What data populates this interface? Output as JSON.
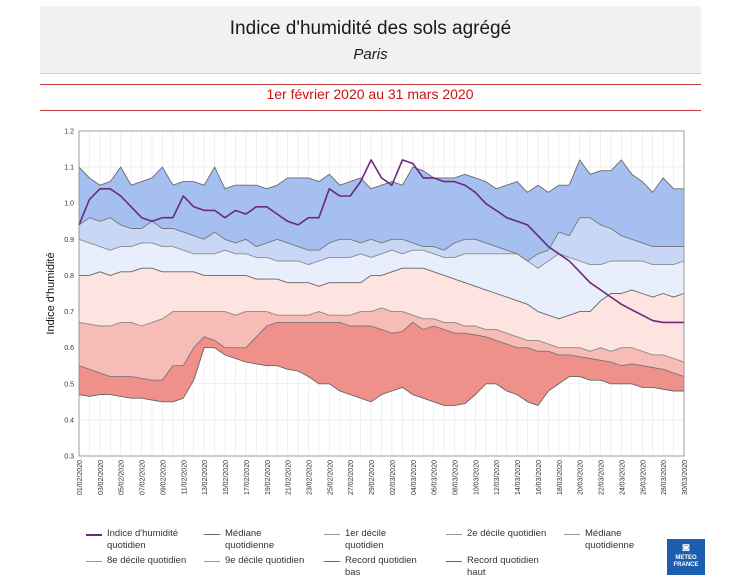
{
  "header": {
    "title": "Indice d'humidité des sols agrégé",
    "subtitle": "Paris"
  },
  "period": "1er février 2020 au 31 mars 2020",
  "logo": {
    "line1": "METEO",
    "line2": "FRANCE",
    "icon": "meteo-france-logo"
  },
  "chart_data": {
    "type": "area",
    "title": "Indice d'humidité des sols agrégé",
    "subtitle": "Paris",
    "ylabel": "Indice d'humidité",
    "xlabel": "",
    "ylim": [
      0.3,
      1.2
    ],
    "yticks": [
      "0.3",
      "0.4",
      "0.5",
      "0.6",
      "0.7",
      "0.8",
      "0.9",
      "1.0",
      "1.1",
      "1.2"
    ],
    "xticks": [
      "01/02/2020",
      "03/02/2020",
      "05/02/2020",
      "07/02/2020",
      "09/02/2020",
      "11/02/2020",
      "13/02/2020",
      "15/02/2020",
      "17/02/2020",
      "19/02/2020",
      "21/02/2020",
      "23/02/2020",
      "25/02/2020",
      "27/02/2020",
      "29/02/2020",
      "02/03/2020",
      "04/03/2020",
      "06/03/2020",
      "08/03/2020",
      "10/03/2020",
      "12/03/2020",
      "14/03/2020",
      "16/03/2020",
      "18/03/2020",
      "20/03/2020",
      "22/03/2020",
      "24/03/2020",
      "26/03/2020",
      "28/03/2020",
      "30/03/2020"
    ],
    "grid": true,
    "legend_position": "bottom",
    "bands": [
      {
        "from": "Record quotidien bas",
        "to": "1er décile quotidien",
        "color": "#f0908a"
      },
      {
        "from": "1er décile quotidien",
        "to": "2e décile quotidien",
        "color": "#f7bcb6"
      },
      {
        "from": "2e décile quotidien",
        "to": "Médiane quotidienne",
        "color": "#fde4e0"
      },
      {
        "from": "Médiane quotidienne",
        "to": "8e décile quotidien",
        "color": "#e8eefb"
      },
      {
        "from": "8e décile quotidien",
        "to": "9e décile quotidien",
        "color": "#c8d7f6"
      },
      {
        "from": "9e décile quotidien",
        "to": "Record quotidien haut",
        "color": "#a5bff0"
      }
    ],
    "series": [
      {
        "name": "Record quotidien bas",
        "color": "#666666",
        "values": [
          0.47,
          0.465,
          0.47,
          0.47,
          0.465,
          0.46,
          0.46,
          0.455,
          0.45,
          0.45,
          0.46,
          0.51,
          0.6,
          0.6,
          0.58,
          0.57,
          0.56,
          0.555,
          0.55,
          0.55,
          0.54,
          0.535,
          0.52,
          0.5,
          0.5,
          0.48,
          0.47,
          0.46,
          0.45,
          0.47,
          0.48,
          0.49,
          0.47,
          0.46,
          0.45,
          0.44,
          0.44,
          0.445,
          0.47,
          0.5,
          0.5,
          0.48,
          0.47,
          0.45,
          0.44,
          0.48,
          0.5,
          0.52,
          0.52,
          0.51,
          0.51,
          0.5,
          0.5,
          0.5,
          0.49,
          0.49,
          0.485,
          0.48,
          0.48
        ]
      },
      {
        "name": "1er décile quotidien",
        "color": "#777777",
        "values": [
          0.55,
          0.54,
          0.53,
          0.52,
          0.52,
          0.52,
          0.515,
          0.51,
          0.51,
          0.55,
          0.55,
          0.6,
          0.63,
          0.62,
          0.6,
          0.6,
          0.6,
          0.63,
          0.66,
          0.67,
          0.67,
          0.67,
          0.67,
          0.67,
          0.67,
          0.67,
          0.66,
          0.66,
          0.66,
          0.65,
          0.64,
          0.645,
          0.67,
          0.65,
          0.66,
          0.65,
          0.64,
          0.64,
          0.635,
          0.63,
          0.62,
          0.61,
          0.6,
          0.6,
          0.59,
          0.59,
          0.58,
          0.58,
          0.575,
          0.57,
          0.565,
          0.56,
          0.55,
          0.555,
          0.55,
          0.545,
          0.54,
          0.53,
          0.52
        ]
      },
      {
        "name": "2e décile quotidien",
        "color": "#888888",
        "values": [
          0.67,
          0.665,
          0.66,
          0.66,
          0.67,
          0.67,
          0.66,
          0.67,
          0.68,
          0.7,
          0.7,
          0.7,
          0.7,
          0.7,
          0.7,
          0.69,
          0.7,
          0.7,
          0.7,
          0.69,
          0.69,
          0.69,
          0.69,
          0.7,
          0.69,
          0.69,
          0.69,
          0.7,
          0.7,
          0.71,
          0.7,
          0.7,
          0.69,
          0.68,
          0.68,
          0.67,
          0.67,
          0.66,
          0.66,
          0.65,
          0.65,
          0.64,
          0.63,
          0.62,
          0.62,
          0.61,
          0.6,
          0.6,
          0.6,
          0.59,
          0.6,
          0.59,
          0.6,
          0.6,
          0.59,
          0.58,
          0.58,
          0.57,
          0.56
        ]
      },
      {
        "name": "Médiane quotidienne",
        "color": "#666666",
        "values": [
          0.8,
          0.8,
          0.81,
          0.8,
          0.81,
          0.81,
          0.82,
          0.82,
          0.81,
          0.81,
          0.81,
          0.81,
          0.8,
          0.8,
          0.8,
          0.8,
          0.8,
          0.79,
          0.79,
          0.79,
          0.78,
          0.78,
          0.78,
          0.77,
          0.78,
          0.78,
          0.78,
          0.78,
          0.8,
          0.8,
          0.81,
          0.82,
          0.82,
          0.82,
          0.81,
          0.8,
          0.79,
          0.78,
          0.77,
          0.76,
          0.75,
          0.74,
          0.73,
          0.72,
          0.7,
          0.69,
          0.68,
          0.69,
          0.7,
          0.7,
          0.73,
          0.75,
          0.75,
          0.76,
          0.75,
          0.74,
          0.75,
          0.74,
          0.75
        ]
      },
      {
        "name": "8e décile quotidien",
        "color": "#8a8a8a",
        "values": [
          0.9,
          0.89,
          0.88,
          0.87,
          0.88,
          0.88,
          0.89,
          0.89,
          0.88,
          0.88,
          0.87,
          0.86,
          0.86,
          0.86,
          0.87,
          0.86,
          0.86,
          0.85,
          0.85,
          0.84,
          0.84,
          0.84,
          0.83,
          0.84,
          0.85,
          0.85,
          0.85,
          0.86,
          0.85,
          0.86,
          0.87,
          0.86,
          0.87,
          0.87,
          0.86,
          0.85,
          0.85,
          0.86,
          0.86,
          0.86,
          0.86,
          0.86,
          0.86,
          0.84,
          0.82,
          0.84,
          0.86,
          0.85,
          0.84,
          0.83,
          0.83,
          0.84,
          0.84,
          0.84,
          0.84,
          0.83,
          0.83,
          0.83,
          0.84
        ]
      },
      {
        "name": "9e décile quotidien",
        "color": "#777777",
        "values": [
          0.94,
          0.96,
          0.95,
          0.96,
          0.94,
          0.93,
          0.93,
          0.95,
          0.93,
          0.93,
          0.92,
          0.91,
          0.9,
          0.92,
          0.9,
          0.89,
          0.9,
          0.88,
          0.89,
          0.9,
          0.89,
          0.88,
          0.87,
          0.87,
          0.89,
          0.9,
          0.9,
          0.89,
          0.9,
          0.89,
          0.9,
          0.9,
          0.89,
          0.88,
          0.88,
          0.87,
          0.89,
          0.9,
          0.9,
          0.89,
          0.88,
          0.87,
          0.86,
          0.84,
          0.86,
          0.87,
          0.92,
          0.91,
          0.96,
          0.96,
          0.94,
          0.93,
          0.91,
          0.9,
          0.89,
          0.88,
          0.88,
          0.88,
          0.88
        ]
      },
      {
        "name": "Record quotidien haut",
        "color": "#6a6a6a",
        "values": [
          1.1,
          1.07,
          1.05,
          1.06,
          1.1,
          1.05,
          1.06,
          1.07,
          1.1,
          1.05,
          1.06,
          1.06,
          1.05,
          1.1,
          1.04,
          1.05,
          1.05,
          1.05,
          1.04,
          1.05,
          1.07,
          1.07,
          1.07,
          1.06,
          1.08,
          1.05,
          1.06,
          1.07,
          1.04,
          1.05,
          1.06,
          1.05,
          1.1,
          1.09,
          1.07,
          1.07,
          1.07,
          1.08,
          1.07,
          1.06,
          1.04,
          1.05,
          1.06,
          1.03,
          1.05,
          1.03,
          1.05,
          1.05,
          1.12,
          1.08,
          1.09,
          1.09,
          1.12,
          1.08,
          1.06,
          1.03,
          1.07,
          1.04,
          1.04
        ]
      },
      {
        "name": "Indice d'humidité quotidien",
        "color": "#6b2a7a",
        "width": 1.6,
        "values": [
          0.94,
          1.01,
          1.04,
          1.04,
          1.02,
          0.99,
          0.96,
          0.95,
          0.96,
          0.96,
          1.02,
          0.99,
          0.98,
          0.98,
          0.96,
          0.98,
          0.97,
          0.99,
          0.99,
          0.97,
          0.95,
          0.94,
          0.96,
          0.96,
          1.04,
          1.02,
          1.02,
          1.06,
          1.12,
          1.07,
          1.05,
          1.12,
          1.11,
          1.07,
          1.07,
          1.06,
          1.06,
          1.05,
          1.03,
          0.999,
          0.98,
          0.96,
          0.95,
          0.94,
          0.91,
          0.88,
          0.86,
          0.84,
          0.81,
          0.78,
          0.76,
          0.74,
          0.72,
          0.705,
          0.69,
          0.675,
          0.67,
          0.67,
          0.67
        ]
      }
    ]
  },
  "legend": {
    "items": [
      {
        "label": "Indice d'humidité quotidien",
        "color": "#6b2a7a",
        "width": 2
      },
      {
        "label": "Médiane quotidienne",
        "color": "#666666",
        "width": 1.5
      },
      {
        "label": "1er décile quotidien",
        "color": "#999999",
        "width": 1
      },
      {
        "label": "2e décile quotidien",
        "color": "#999999",
        "width": 1
      },
      {
        "label": "Médiane quotidienne",
        "color": "#999999",
        "width": 1
      },
      {
        "label": "8e décile quotidien",
        "color": "#999999",
        "width": 1
      },
      {
        "label": "9e décile quotidien",
        "color": "#999999",
        "width": 1
      },
      {
        "label": "Record quotidien bas",
        "color": "#666666",
        "width": 1
      },
      {
        "label": "Record quotidien haut",
        "color": "#666666",
        "width": 1
      }
    ]
  }
}
